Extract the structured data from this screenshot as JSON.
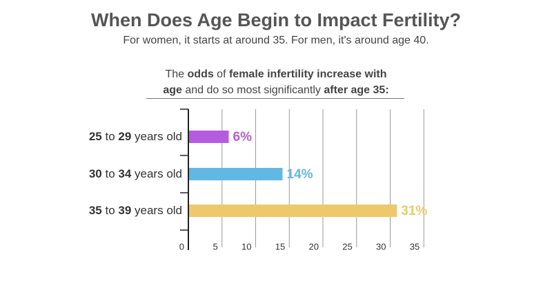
{
  "header": {
    "title": "When Does Age Begin to Impact Fertility?",
    "subtitle": "For women, it starts at around 35. For men, it's around age 40."
  },
  "lead": {
    "line1": [
      {
        "text": "The ",
        "bold": false
      },
      {
        "text": "odds",
        "bold": true
      },
      {
        "text": " of ",
        "bold": false
      },
      {
        "text": "female infertility increase with",
        "bold": true
      }
    ],
    "line2": [
      {
        "text": "age",
        "bold": true
      },
      {
        "text": " and do so most significantly ",
        "bold": false
      },
      {
        "text": "after age 35:",
        "bold": true
      }
    ]
  },
  "chart_data": {
    "type": "bar",
    "orientation": "horizontal",
    "title": "",
    "xlabel": "",
    "ylabel": "",
    "xlim": [
      0,
      35
    ],
    "grid": true,
    "categories": [
      {
        "from": "25",
        "to": "29",
        "suffix": "years old"
      },
      {
        "from": "30",
        "to": "34",
        "suffix": "years old"
      },
      {
        "from": "35",
        "to": "39",
        "suffix": "years old"
      }
    ],
    "connector": "to",
    "values": [
      6,
      14,
      31
    ],
    "value_labels": [
      "6%",
      "14%",
      "31%"
    ],
    "colors": [
      "#b55be0",
      "#62b8e4",
      "#edc96b"
    ],
    "ticks": [
      0,
      5,
      10,
      15,
      20,
      25,
      30,
      35
    ]
  }
}
